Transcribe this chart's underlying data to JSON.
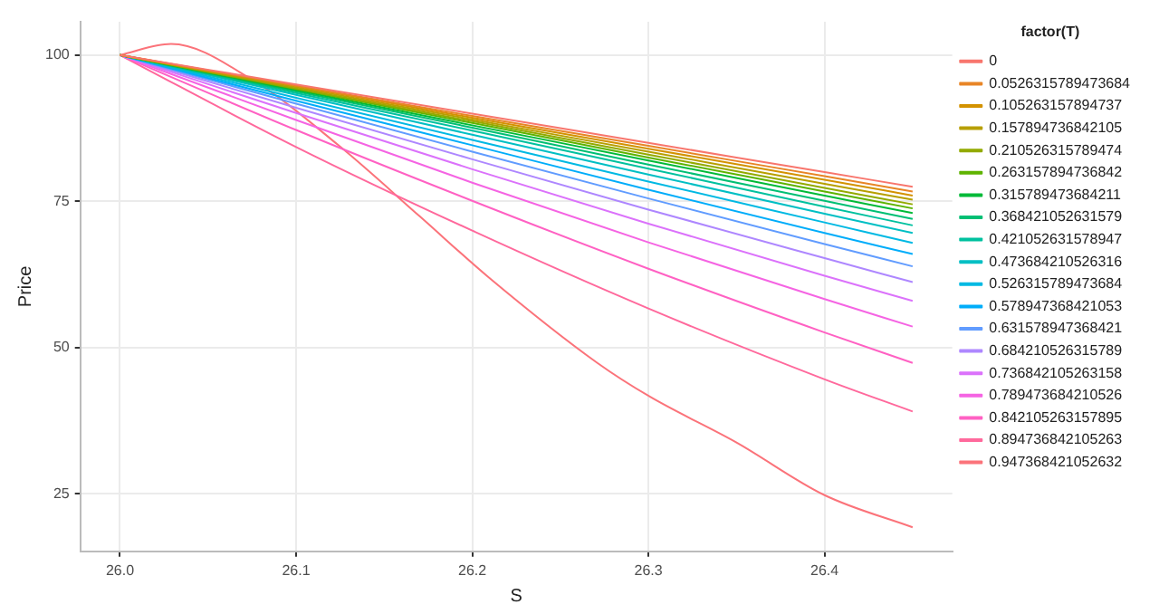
{
  "chart_data": {
    "type": "line",
    "xlabel": "S",
    "ylabel": "Price",
    "legend_title": "factor(T)",
    "legend": "right",
    "grid": true,
    "marker": "none",
    "line_style": "solid",
    "xlim": [
      25.9775,
      26.4725
    ],
    "xticks": [
      {
        "value": 26.0,
        "label": "26.0"
      },
      26.1,
      26.2,
      26.3,
      26.4
    ],
    "ylim": [
      15.2,
      105.7
    ],
    "yticks": [
      25,
      50,
      75,
      100
    ],
    "x": [
      26.0,
      26.1,
      26.2,
      26.3,
      26.4,
      26.45
    ],
    "series": [
      {
        "name": "0",
        "color": "#f8766d",
        "values": [
          100,
          95.0,
          90.0,
          85.0,
          80.0,
          77.5
        ]
      },
      {
        "name": "0.0526315789473684",
        "color": "#e88526",
        "values": [
          100,
          94.8,
          89.6,
          84.5,
          79.3,
          76.7
        ]
      },
      {
        "name": "0.105263157894737",
        "color": "#d39200",
        "values": [
          100,
          94.7,
          89.3,
          84.0,
          78.7,
          76.0
        ]
      },
      {
        "name": "0.157894736842105",
        "color": "#b79f00",
        "values": [
          100,
          94.5,
          89.0,
          83.5,
          78.0,
          75.3
        ]
      },
      {
        "name": "0.210526315789474",
        "color": "#93aa00",
        "values": [
          100,
          94.3,
          88.7,
          83.0,
          77.3,
          74.5
        ]
      },
      {
        "name": "0.263157894736842",
        "color": "#5eb300",
        "values": [
          100,
          94.2,
          88.4,
          82.5,
          76.7,
          73.8
        ]
      },
      {
        "name": "0.315789473684211",
        "color": "#00ba38",
        "values": [
          100,
          94.0,
          88.0,
          82.0,
          76.0,
          73.0
        ]
      },
      {
        "name": "0.368421052631579",
        "color": "#00bf74",
        "values": [
          100,
          93.8,
          87.6,
          81.3,
          75.1,
          72.0
        ]
      },
      {
        "name": "0.421052631578947",
        "color": "#00c19f",
        "values": [
          100,
          93.5,
          87.1,
          80.6,
          74.1,
          70.9
        ]
      },
      {
        "name": "0.473684210526316",
        "color": "#00bfc4",
        "values": [
          100,
          93.2,
          86.4,
          79.6,
          72.9,
          69.6
        ]
      },
      {
        "name": "0.526315789473684",
        "color": "#00b9e3",
        "values": [
          100,
          92.7,
          85.5,
          78.4,
          71.4,
          67.9
        ]
      },
      {
        "name": "0.578947368421053",
        "color": "#00adfa",
        "values": [
          100,
          92.2,
          84.6,
          77.0,
          69.6,
          66.0
        ]
      },
      {
        "name": "0.631578947368421",
        "color": "#619cff",
        "values": [
          100,
          91.7,
          83.5,
          75.5,
          67.7,
          63.9
        ]
      },
      {
        "name": "0.684210526315789",
        "color": "#ae87ff",
        "values": [
          100,
          91.0,
          82.2,
          73.6,
          65.3,
          61.2
        ]
      },
      {
        "name": "0.736842105263158",
        "color": "#db72fb",
        "values": [
          100,
          90.1,
          80.5,
          71.2,
          62.3,
          58.0
        ]
      },
      {
        "name": "0.789473684210526",
        "color": "#f564e3",
        "values": [
          100,
          88.9,
          78.2,
          68.0,
          58.3,
          53.6
        ]
      },
      {
        "name": "0.842105263157895",
        "color": "#ff61c3",
        "values": [
          100,
          87.2,
          75.1,
          63.5,
          52.6,
          47.4
        ]
      },
      {
        "name": "0.894736842105263",
        "color": "#ff699c",
        "values": [
          100,
          84.3,
          70.0,
          56.7,
          44.6,
          39.1
        ]
      },
      {
        "name": "0.947368421052632",
        "color": "#fb737a",
        "x": [
          26.0,
          26.029,
          26.075,
          26.124,
          26.17,
          26.209,
          26.271,
          26.301,
          26.35,
          26.4,
          26.45
        ],
        "values": [
          100,
          101.9,
          95.8,
          84.6,
          72.5,
          62.1,
          47.4,
          41.6,
          33.8,
          24.8,
          19.3
        ]
      }
    ]
  }
}
